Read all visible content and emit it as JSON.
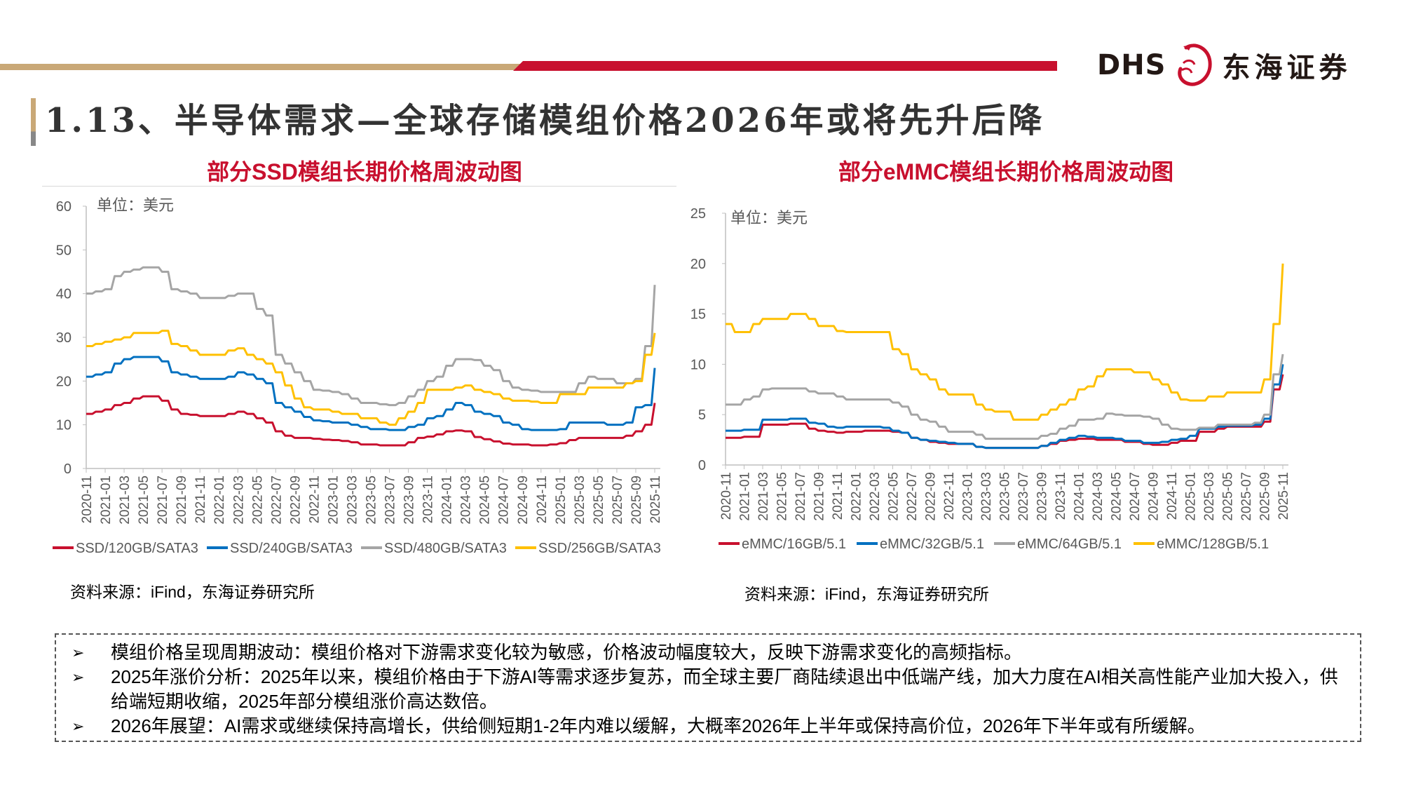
{
  "header": {
    "logo_text": "DHS",
    "logo_cn": "东海证券",
    "accent_red": "#c8102e",
    "accent_tan": "#c9a877"
  },
  "page_title": "1.13、半导体需求—全球存储模组价格2026年或将先升后降",
  "chart_data": [
    {
      "type": "line",
      "title": "部分SSD模组长期价格周波动图",
      "unit_label": "单位：美元",
      "ylim": [
        0,
        60
      ],
      "yticks": [
        "0",
        "10",
        "20",
        "30",
        "40",
        "50",
        "60"
      ],
      "xticks": [
        "2020-11",
        "2021-01",
        "2021-03",
        "2021-05",
        "2021-07",
        "2021-09",
        "2021-11",
        "2022-01",
        "2022-03",
        "2022-05",
        "2022-07",
        "2022-09",
        "2022-11",
        "2023-01",
        "2023-03",
        "2023-05",
        "2023-07",
        "2023-09",
        "2023-11",
        "2024-01",
        "2024-03",
        "2024-05",
        "2024-07",
        "2024-09",
        "2024-11",
        "2025-01",
        "2025-03",
        "2025-05",
        "2025-07",
        "2025-09",
        "2025-11"
      ],
      "grid": false,
      "legend": "bottom",
      "series": [
        {
          "name": "SSD/120GB/SATA3",
          "color": "#c8102e",
          "values": [
            12.5,
            13,
            13.5,
            14.5,
            15,
            16,
            16.5,
            16.5,
            15.5,
            13.5,
            12.5,
            12.3,
            12,
            12,
            12,
            12.5,
            13,
            12.5,
            11.5,
            10.5,
            8.5,
            7.5,
            7,
            7,
            6.8,
            6.6,
            6.5,
            6.3,
            6,
            5.5,
            5.5,
            5.3,
            5.3,
            5.3,
            6,
            7,
            7.3,
            7.8,
            8.5,
            8.7,
            8.5,
            7.2,
            6.7,
            6.2,
            5.7,
            5.5,
            5.5,
            5.3,
            5.3,
            5.5,
            5.8,
            6.5,
            7,
            7,
            7,
            7,
            7,
            7.5,
            8.5,
            10,
            15
          ]
        },
        {
          "name": "SSD/240GB/SATA3",
          "color": "#0070c0",
          "values": [
            21,
            21.5,
            22,
            24,
            25,
            25.5,
            25.5,
            25.5,
            24.5,
            22,
            21.5,
            21,
            20.5,
            20.5,
            20.5,
            21,
            22,
            21.5,
            20.5,
            19.5,
            15,
            14,
            13,
            11.8,
            11,
            10.8,
            10.5,
            10.5,
            10,
            9.5,
            9,
            9,
            8.8,
            8.8,
            9.5,
            10,
            11.5,
            12,
            13.5,
            15,
            14.5,
            13,
            12.5,
            12,
            10.5,
            10,
            9,
            8.8,
            8.8,
            8.8,
            9,
            10.5,
            10.5,
            10.5,
            10.5,
            10,
            10,
            10.5,
            14,
            14.5,
            23
          ]
        },
        {
          "name": "SSD/480GB/SATA3",
          "color": "#a5a5a5",
          "values": [
            40,
            40.5,
            41,
            44,
            45,
            45.5,
            46,
            46,
            45,
            41,
            40.5,
            40,
            39,
            39,
            39,
            39.5,
            40,
            40,
            36.5,
            35,
            26,
            24,
            22,
            20,
            18,
            17.8,
            17.5,
            17,
            16,
            15,
            15,
            14.7,
            14.5,
            15,
            16.5,
            18,
            20,
            21,
            23.5,
            25,
            25,
            24.8,
            23.5,
            22.5,
            20,
            18.5,
            18,
            17.8,
            17.5,
            17.5,
            17.5,
            17.5,
            19.5,
            21,
            20.5,
            20.5,
            19.5,
            19.5,
            20.5,
            28,
            42
          ]
        },
        {
          "name": "SSD/256GB/SATA3",
          "color": "#ffc000",
          "values": [
            28,
            28.5,
            29,
            29.5,
            30,
            31,
            31,
            31,
            31.5,
            28.5,
            28,
            27,
            26,
            26,
            26,
            27,
            27.5,
            26,
            25,
            24,
            22,
            19,
            16,
            14,
            13.5,
            13.5,
            13,
            12.5,
            12.5,
            11.5,
            11.5,
            10.5,
            10,
            11.5,
            13,
            15,
            18,
            18,
            18,
            18.5,
            19,
            18,
            17.5,
            17,
            16,
            15.5,
            15.5,
            15.3,
            15,
            15,
            17,
            17,
            17,
            18.5,
            18.5,
            18.5,
            18.5,
            19.5,
            20,
            26,
            31
          ]
        }
      ],
      "source": "资料来源：iFind，东海证券研究所"
    },
    {
      "type": "line",
      "title": "部分eMMC模组长期价格周波动图",
      "unit_label": "单位：美元",
      "ylim": [
        0,
        25
      ],
      "yticks": [
        "0",
        "5",
        "10",
        "15",
        "20",
        "25"
      ],
      "xticks": [
        "2020-11",
        "2021-01",
        "2021-03",
        "2021-05",
        "2021-07",
        "2021-09",
        "2021-11",
        "2022-01",
        "2022-03",
        "2022-05",
        "2022-07",
        "2022-09",
        "2022-11",
        "2023-01",
        "2023-03",
        "2023-05",
        "2023-07",
        "2023-09",
        "2023-11",
        "2024-01",
        "2024-03",
        "2024-05",
        "2024-07",
        "2024-09",
        "2024-11",
        "2025-01",
        "2025-03",
        "2025-05",
        "2025-07",
        "2025-09",
        "2025-11"
      ],
      "grid": false,
      "legend": "bottom",
      "series": [
        {
          "name": "eMMC/16GB/5.1",
          "color": "#c8102e",
          "values": [
            2.7,
            2.7,
            2.8,
            2.8,
            4,
            4,
            4,
            4.1,
            4.1,
            3.6,
            3.4,
            3.3,
            3.2,
            3.3,
            3.3,
            3.4,
            3.4,
            3.4,
            3.3,
            3.2,
            2.7,
            2.5,
            2.3,
            2.2,
            2.1,
            2.1,
            2.1,
            1.8,
            1.7,
            1.7,
            1.7,
            1.7,
            1.7,
            1.7,
            1.9,
            2.1,
            2.4,
            2.5,
            2.6,
            2.6,
            2.5,
            2.5,
            2.5,
            2.3,
            2.3,
            2.1,
            2.0,
            2.0,
            2.2,
            2.4,
            2.4,
            3.3,
            3.3,
            3.6,
            3.8,
            3.8,
            3.8,
            3.8,
            4.3,
            7.5,
            9
          ]
        },
        {
          "name": "eMMC/32GB/5.1",
          "color": "#0070c0",
          "values": [
            3.4,
            3.4,
            3.5,
            3.5,
            4.5,
            4.5,
            4.5,
            4.6,
            4.6,
            4.2,
            4.1,
            3.8,
            3.7,
            3.8,
            3.8,
            3.8,
            3.8,
            3.7,
            3.4,
            3.2,
            2.7,
            2.5,
            2.4,
            2.3,
            2.2,
            2.1,
            2.1,
            1.8,
            1.7,
            1.7,
            1.7,
            1.7,
            1.7,
            1.7,
            1.9,
            2.2,
            2.5,
            2.7,
            2.9,
            2.8,
            2.7,
            2.7,
            2.6,
            2.4,
            2.4,
            2.2,
            2.2,
            2.3,
            2.5,
            2.6,
            2.9,
            3.6,
            3.6,
            3.8,
            3.9,
            3.9,
            3.9,
            4,
            4.6,
            8,
            10
          ]
        },
        {
          "name": "eMMC/64GB/5.1",
          "color": "#a5a5a5",
          "values": [
            6,
            6,
            6.5,
            6.8,
            7.5,
            7.6,
            7.6,
            7.6,
            7.6,
            7.3,
            7.1,
            7.1,
            6.8,
            6.5,
            6.5,
            6.5,
            6.5,
            6.5,
            6.2,
            5.8,
            5,
            4.5,
            4.3,
            3.8,
            3.3,
            3.3,
            3.3,
            3,
            2.6,
            2.6,
            2.6,
            2.6,
            2.6,
            2.6,
            2.9,
            3.1,
            3.6,
            3.9,
            4.5,
            4.5,
            4.6,
            5.1,
            5,
            4.9,
            4.9,
            4.8,
            4.6,
            4,
            3.6,
            3.5,
            3.5,
            3.7,
            3.7,
            4,
            4,
            4,
            4,
            4.2,
            5,
            9,
            11
          ]
        },
        {
          "name": "eMMC/128GB/5.1",
          "color": "#ffc000",
          "values": [
            14,
            13.2,
            13.2,
            14,
            14.5,
            14.5,
            14.5,
            15,
            15,
            14.5,
            13.8,
            13.8,
            13.3,
            13.2,
            13.2,
            13.2,
            13.2,
            13.2,
            11.5,
            11,
            9.5,
            9,
            8.5,
            7.5,
            7,
            7,
            7,
            6,
            5.5,
            5.3,
            5.3,
            4.5,
            4.5,
            4.5,
            5,
            5.5,
            6,
            6.5,
            7.5,
            7.8,
            8.8,
            9.5,
            9.5,
            9.5,
            9.2,
            9.2,
            8.5,
            8,
            7.2,
            6.5,
            6.4,
            6.4,
            6.8,
            6.8,
            7.2,
            7.2,
            7.2,
            7.2,
            8.5,
            14,
            20
          ]
        }
      ],
      "source": "资料来源：iFind，东海证券研究所"
    }
  ],
  "notes": [
    {
      "bullet": "➢",
      "text": "模组价格呈现周期波动：模组价格对下游需求变化较为敏感，价格波动幅度较大，反映下游需求变化的高频指标。"
    },
    {
      "bullet": "➢",
      "text": "2025年涨价分析：2025年以来，模组价格由于下游AI等需求逐步复苏，而全球主要厂商陆续退出中低端产线，加大力度在AI相关高性能产业加大投入，供给端短期收缩，2025年部分模组涨价高达数倍。"
    },
    {
      "bullet": "➢",
      "text": "2026年展望：AI需求或继续保持高增长，供给侧短期1-2年内难以缓解，大概率2026年上半年或保持高价位，2026年下半年或有所缓解。"
    }
  ]
}
